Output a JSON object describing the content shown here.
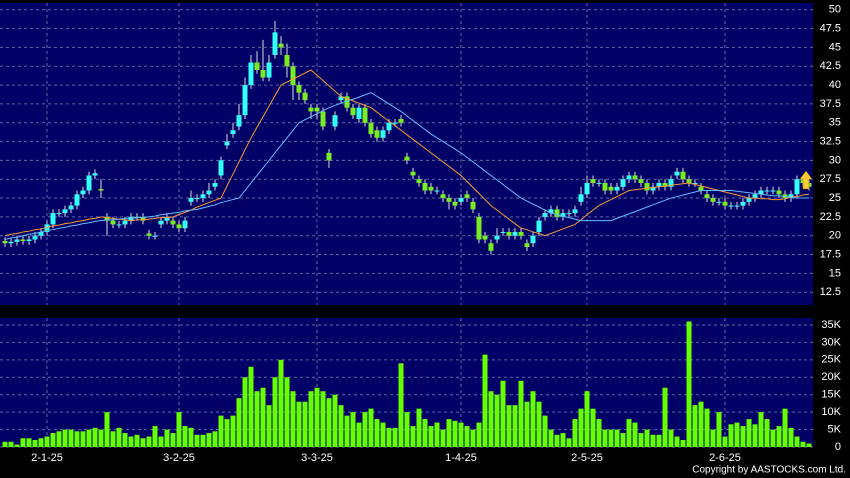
{
  "chart_data": {
    "type": "candlestick",
    "categories": [
      null,
      null,
      null,
      null,
      null,
      null,
      null,
      "2-1-25",
      null,
      null,
      null,
      null,
      null,
      null,
      null,
      null,
      null,
      null,
      null,
      null,
      null,
      null,
      null,
      null,
      null,
      null,
      null,
      null,
      null,
      "3-2-25",
      null,
      null,
      null,
      null,
      null,
      null,
      null,
      null,
      null,
      null,
      null,
      null,
      null,
      null,
      null,
      null,
      null,
      null,
      null,
      null,
      null,
      null,
      "3-3-25",
      null,
      null,
      null,
      null,
      null,
      null,
      null,
      null,
      null,
      null,
      null,
      null,
      null,
      null,
      null,
      null,
      null,
      null,
      null,
      null,
      null,
      null,
      null,
      "1-4-25",
      null,
      null,
      null,
      null,
      null,
      null,
      null,
      null,
      null,
      null,
      null,
      null,
      null,
      null,
      null,
      null,
      null,
      null,
      null,
      null,
      "2-5-25",
      null,
      null,
      null,
      null,
      null,
      null,
      null,
      null,
      null,
      null,
      null,
      null,
      null,
      null,
      null,
      null,
      null,
      null,
      null,
      null,
      null,
      null,
      "2-6-25",
      null,
      null,
      null,
      null,
      null,
      null,
      null,
      null,
      null,
      null,
      null,
      null,
      null,
      null
    ],
    "open": [
      19.3,
      19,
      19.2,
      19.5,
      19.3,
      19.5,
      20,
      20.5,
      21.5,
      23,
      23,
      23.5,
      24,
      25.5,
      26,
      28,
      26.2,
      22.5,
      22,
      21.5,
      21.5,
      22,
      22.5,
      22.5,
      20.3,
      20,
      21.5,
      22,
      22,
      21.5,
      21,
      24.5,
      25,
      25,
      25.5,
      26.5,
      28,
      32,
      33.5,
      34.5,
      36,
      40,
      43,
      42,
      41,
      44,
      45.5,
      44,
      42.5,
      40,
      39,
      37,
      37,
      36.5,
      31,
      34.5,
      38,
      38.5,
      37,
      35.5,
      37,
      35,
      34,
      33,
      34,
      35,
      35.5,
      30.5,
      28.5,
      27.5,
      27,
      26.5,
      26,
      25.5,
      25,
      24.5,
      24.5,
      25.5,
      24.5,
      22.5,
      20,
      19,
      19.5,
      20.5,
      20.5,
      20,
      20.5,
      19,
      19,
      20.5,
      22.5,
      23,
      23.5,
      22.5,
      23,
      23,
      24.5,
      25.5,
      27.5,
      27,
      27,
      26.5,
      26,
      26.5,
      27.5,
      28,
      27.5,
      27,
      26,
      26.5,
      27,
      26.5,
      28,
      28.5,
      27.5,
      27,
      26.5,
      25.5,
      25,
      24.5,
      24.5,
      24,
      24,
      24,
      24.5,
      25,
      25.5,
      26,
      26,
      26,
      25.5,
      25,
      25.5,
      27.5,
      27
    ],
    "high": [
      19.8,
      19.7,
      20,
      20,
      20,
      20.5,
      21,
      22,
      23.5,
      23.5,
      24,
      24.5,
      26,
      26.5,
      28.5,
      28.8,
      27.5,
      23,
      22.5,
      22,
      22.5,
      23,
      23,
      23,
      20.8,
      20.5,
      22.5,
      23,
      22.5,
      22,
      22.5,
      26,
      25.5,
      26,
      27,
      27.5,
      30.5,
      33.5,
      35,
      37.5,
      41,
      44,
      44.5,
      46,
      44,
      48.5,
      46.5,
      45.5,
      43,
      40.5,
      39.5,
      37.5,
      37.5,
      37,
      31.5,
      36.5,
      39,
      39,
      37.5,
      37.5,
      37.5,
      35.5,
      34.5,
      34.5,
      35.5,
      35.5,
      36,
      31,
      29,
      28,
      27.5,
      27,
      26.5,
      26,
      25.5,
      25,
      25.5,
      26,
      25,
      23,
      20.5,
      19.5,
      21,
      21,
      21,
      21,
      21,
      19.5,
      20.5,
      22.5,
      23.5,
      24,
      24,
      23.5,
      23.5,
      24,
      26.5,
      28,
      28,
      27.5,
      27.5,
      27,
      27,
      28,
      28.5,
      28.5,
      28,
      27.5,
      27,
      27.5,
      27.5,
      28,
      29,
      29,
      28,
      27.5,
      27,
      26,
      25.5,
      25,
      25,
      24.5,
      24.5,
      25,
      25.5,
      26,
      26.5,
      26.5,
      26.5,
      26.5,
      26,
      26,
      28,
      28,
      27.5
    ],
    "low": [
      18.5,
      18.5,
      18.7,
      18.8,
      18.8,
      19,
      19.5,
      20,
      21,
      22.5,
      22.5,
      23,
      23.5,
      25,
      25.5,
      27.5,
      25,
      20,
      21,
      21,
      21,
      21.5,
      22,
      21.5,
      19.5,
      19.5,
      21,
      21.5,
      21,
      20.5,
      20.5,
      24,
      24.5,
      24.5,
      25,
      26,
      27.5,
      31.5,
      33,
      34,
      35.5,
      39.5,
      41.5,
      40.5,
      40.5,
      43.5,
      44,
      41,
      38,
      38,
      37.5,
      35.5,
      35.5,
      34,
      29,
      34,
      37.5,
      36.5,
      35.5,
      35,
      34.5,
      33,
      32.5,
      32.5,
      33.5,
      34.5,
      34.5,
      29.5,
      27.5,
      26.5,
      25.5,
      25.5,
      25.5,
      24.5,
      23.5,
      23.5,
      24,
      24.5,
      23,
      19,
      19,
      17.5,
      19,
      20,
      19.5,
      19.5,
      19.5,
      18,
      18.5,
      20,
      22,
      22.5,
      22,
      22,
      22.5,
      22.5,
      24,
      25,
      26.5,
      26.5,
      25.5,
      25.5,
      25.5,
      26,
      27,
      27,
      26.5,
      25.5,
      25.5,
      26,
      26,
      26,
      27.5,
      27,
      26.5,
      26.5,
      25.5,
      24.5,
      24,
      24,
      23.5,
      23.5,
      23.5,
      23.5,
      24,
      24.5,
      25,
      25.5,
      25.5,
      25,
      24.5,
      24.5,
      25,
      26.5,
      26
    ],
    "close": [
      19,
      19.2,
      19.5,
      19.3,
      19.5,
      20,
      20.5,
      21.5,
      23,
      23,
      23.5,
      24,
      25.5,
      26,
      28,
      28.3,
      26,
      22,
      21.5,
      21.5,
      22,
      22.5,
      22.5,
      22,
      20,
      20,
      22,
      22.5,
      21.5,
      21,
      22,
      25,
      25,
      25.5,
      26,
      27,
      30,
      32.5,
      34,
      36,
      40,
      43,
      42,
      41,
      43,
      47,
      45,
      42.5,
      40,
      39,
      38,
      36.5,
      36.5,
      34.5,
      30,
      36,
      38.5,
      37,
      36,
      37,
      35,
      33.5,
      33,
      34,
      35,
      35,
      35,
      30,
      28,
      27,
      26,
      26,
      26,
      25,
      24.5,
      24,
      25,
      25,
      23.5,
      19.5,
      19.5,
      18,
      20,
      20.5,
      20,
      20.5,
      20,
      18.5,
      20,
      22,
      23,
      23.5,
      22.5,
      23,
      23,
      23.5,
      25.5,
      27,
      27,
      27,
      26,
      26,
      26.5,
      27.5,
      28,
      27.5,
      27,
      26,
      26.5,
      27,
      26.5,
      27.5,
      28.5,
      27.5,
      27,
      27,
      26,
      25,
      24.5,
      24.5,
      24,
      24,
      24,
      24.5,
      25,
      25.5,
      26,
      26,
      26,
      25.5,
      25,
      25.5,
      27.5,
      27,
      26.5
    ],
    "up_color": "#33ffff",
    "down_color": "#77ee22",
    "series": [
      {
        "color": "#ff9933",
        "values": [
          20,
          20.2,
          20.3,
          20.5,
          20.6,
          20.8,
          20.9,
          21.1,
          21.3,
          21.4,
          21.6,
          21.7,
          21.9,
          22,
          22.2,
          22.3,
          22.5,
          22.4,
          22.3,
          22.2,
          22.1,
          22,
          22.1,
          22.1,
          22.2,
          22.3,
          22.4,
          22.4,
          22.5,
          22.8,
          23.1,
          23.4,
          23.8,
          24.1,
          24.4,
          24.7,
          25,
          26.6,
          28.2,
          29.8,
          31.4,
          33,
          34.4,
          35.8,
          37.2,
          38.6,
          40,
          40.4,
          40.8,
          41.2,
          41.6,
          42,
          41.3,
          40.6,
          39.9,
          39.2,
          38.5,
          38.2,
          37.9,
          37.6,
          37.3,
          37,
          36.4,
          35.8,
          35.2,
          34.6,
          34,
          33.4,
          32.8,
          32.2,
          31.6,
          31,
          30.4,
          29.8,
          29.2,
          28.6,
          28,
          27.2,
          26.4,
          25.6,
          24.8,
          24,
          23.4,
          22.8,
          22.2,
          21.6,
          21,
          20.8,
          20.5,
          20.3,
          20,
          20.3,
          20.6,
          20.9,
          21.2,
          21.5,
          22.1,
          22.8,
          23.4,
          24,
          24.4,
          24.8,
          25.2,
          25.6,
          26,
          26.1,
          26.2,
          26.3,
          26.4,
          26.5,
          26.6,
          26.7,
          26.8,
          26.9,
          27,
          26.8,
          26.6,
          26.4,
          26.2,
          26,
          25.8,
          25.6,
          25.4,
          25.2,
          25,
          25,
          24.9,
          24.9,
          24.8,
          24.8,
          24.9,
          25.1,
          25.2,
          25.4,
          25.5
        ]
      },
      {
        "color": "#66bbff",
        "values": [
          19.5,
          19.7,
          19.8,
          20,
          20.2,
          20.3,
          20.5,
          20.7,
          20.8,
          21,
          21.1,
          21.3,
          21.4,
          21.6,
          21.7,
          21.9,
          22,
          22.1,
          22.1,
          22.2,
          22.3,
          22.3,
          22.4,
          22.4,
          22.5,
          22.6,
          22.8,
          22.9,
          23,
          23.1,
          23.3,
          23.4,
          23.5,
          23.7,
          23.9,
          24.1,
          24.4,
          24.6,
          24.8,
          25,
          26,
          27,
          28,
          29,
          30,
          31,
          32,
          33,
          34,
          35,
          35.4,
          35.8,
          36.2,
          36.6,
          37,
          37.3,
          37.6,
          37.9,
          38.1,
          38.4,
          38.7,
          39,
          38.5,
          38,
          37.5,
          37,
          36.5,
          35.9,
          35.3,
          34.7,
          34.1,
          33.5,
          33,
          32.5,
          32,
          31.5,
          31,
          30.4,
          29.8,
          29.2,
          28.6,
          28,
          27.4,
          26.8,
          26.2,
          25.6,
          25,
          24.6,
          24.2,
          23.8,
          23.4,
          23,
          22.8,
          22.6,
          22.4,
          22.2,
          22,
          22,
          22,
          22,
          22,
          22,
          22.3,
          22.6,
          22.9,
          23.2,
          23.5,
          23.8,
          24.1,
          24.4,
          24.7,
          25,
          25.2,
          25.4,
          25.6,
          25.8,
          26,
          26,
          26,
          26,
          26,
          26,
          25.9,
          25.8,
          25.7,
          25.6,
          25.5,
          25.4,
          25.3,
          25.3,
          25.2,
          25.1,
          25,
          25,
          25
        ]
      }
    ],
    "ylim": [
      10.8,
      50.9
    ],
    "yticks": [
      12.5,
      15,
      17.5,
      20,
      22.5,
      25,
      27.5,
      30,
      32.5,
      35,
      37.5,
      40,
      42.5,
      45,
      47.5,
      50
    ],
    "grid": true,
    "volume": {
      "type": "bar",
      "color": "#66ff00",
      "values": [
        1500,
        1500,
        700,
        2500,
        2500,
        2000,
        2500,
        3000,
        4000,
        4500,
        5000,
        5000,
        4500,
        4500,
        5000,
        5500,
        5000,
        10000,
        4500,
        5500,
        4000,
        3000,
        3500,
        2500,
        3000,
        6000,
        3000,
        5000,
        4000,
        10000,
        6000,
        5500,
        3500,
        3500,
        4000,
        4500,
        9000,
        8000,
        9000,
        14000,
        20000,
        23000,
        16000,
        17000,
        12000,
        20000,
        25000,
        20000,
        16000,
        13000,
        13000,
        16000,
        17000,
        16000,
        14000,
        15000,
        12000,
        9000,
        10000,
        7000,
        10000,
        11000,
        8000,
        7000,
        5500,
        5500,
        24000,
        10000,
        6000,
        11000,
        8000,
        6000,
        7000,
        5000,
        8000,
        7500,
        7000,
        6000,
        5000,
        7000,
        26500,
        16000,
        15000,
        19000,
        12000,
        12000,
        19000,
        13000,
        16000,
        13000,
        9000,
        5000,
        3500,
        4000,
        2500,
        8000,
        11000,
        16000,
        11000,
        8000,
        5000,
        5000,
        5000,
        4000,
        8000,
        7000,
        4000,
        5000,
        3500,
        3500,
        17000,
        5000,
        3000,
        2000,
        36000,
        12000,
        13000,
        11000,
        5000,
        10000,
        3000,
        6500,
        7000,
        6000,
        8000,
        6500,
        10000,
        8000,
        5000,
        6000,
        11000,
        5500,
        3000,
        1500,
        1000
      ],
      "ylim": [
        0,
        37000
      ],
      "yticks": [
        0,
        {
          "value": 5000,
          "label": "5K"
        },
        {
          "value": 10000,
          "label": "10K"
        },
        {
          "value": 15000,
          "label": "15K"
        },
        {
          "value": 20000,
          "label": "20K"
        },
        {
          "value": 25000,
          "label": "25K"
        },
        {
          "value": 30000,
          "label": "30K"
        },
        {
          "value": 35000,
          "label": "35K"
        }
      ]
    },
    "credit": "Copyright by AASTOCKS.com Ltd."
  }
}
